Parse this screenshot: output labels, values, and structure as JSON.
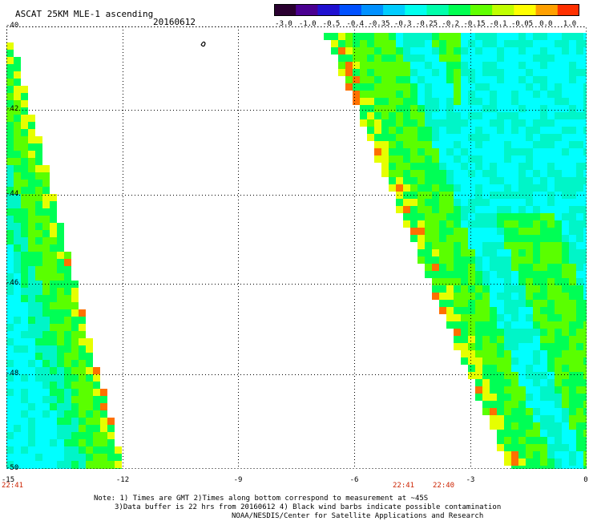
{
  "header": {
    "title": "ASCAT 25KM MLE-1 ascending",
    "date": "20160612"
  },
  "colorbar": {
    "ticks": [
      "-3.0",
      "-1.0",
      "-0.5",
      "-0.4",
      "-0.35",
      "-0.3",
      "-0.25",
      "-0.2",
      "-0.15",
      "-0.1",
      "-0.05",
      "0.0",
      "1.0"
    ],
    "colors": [
      "#2a0030",
      "#4a0090",
      "#2010d0",
      "#0050ff",
      "#0090ff",
      "#00ccff",
      "#00ffee",
      "#00ffaa",
      "#00ff50",
      "#60ff00",
      "#c0ff00",
      "#ffff00",
      "#ffa000",
      "#ff3000"
    ]
  },
  "map": {
    "lat_labels": [
      "-40",
      "-42",
      "-44",
      "-46",
      "-48",
      "-50"
    ],
    "lon_labels": [
      "-15",
      "-12",
      "-9",
      "-6",
      "-3",
      "0"
    ],
    "gmt_labels": [
      "22:41",
      "22:41",
      "22:40"
    ],
    "field_colors": {
      "cyan": "#00ffff",
      "aqua": "#00f5c8",
      "green": "#00ff55",
      "lime": "#5aff00",
      "yellow": "#e6ff00",
      "orange": "#ff7000",
      "blue": "#0060ff"
    }
  },
  "footer": {
    "line1": "Note: 1) Times are GMT 2)Times along bottom correspond to measurement at ~45S",
    "line2": "3)Data buffer is 22 hrs from 20160612 4) Black wind barbs indicate possible contamination",
    "line3": "NOAA/NESDIS/Center for Satellite Applications and Research"
  }
}
